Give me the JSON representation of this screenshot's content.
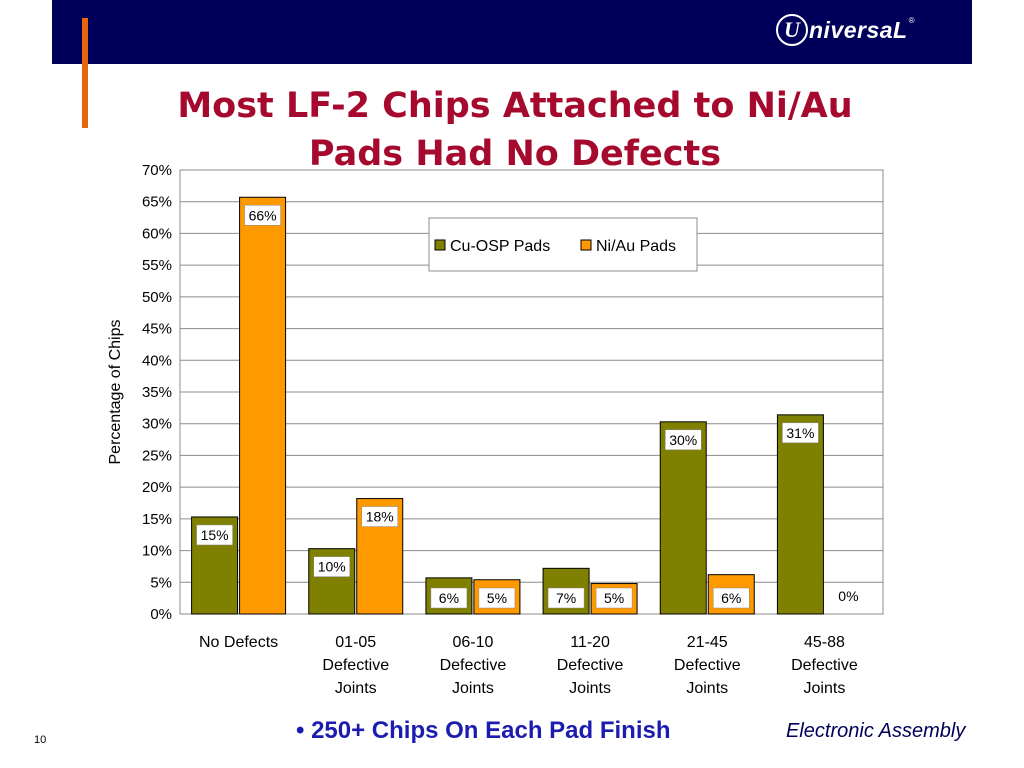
{
  "header": {
    "logo_text": "UniversaL",
    "logo_mark": "®",
    "title_line1": "Most LF-2 Chips Attached to Ni/Au",
    "title_line2": "Pads Had No Defects"
  },
  "footer": {
    "bullet": "• 250+ Chips On Each Pad Finish",
    "brand": "Electronic Assembly",
    "page_number": "10"
  },
  "colors": {
    "topbar": "#00005a",
    "accent": "#e8660c",
    "title": "#a6092e",
    "series_cu": "#7f7f00",
    "series_ni": "#ff9900"
  },
  "chart_data": {
    "type": "bar",
    "title": "",
    "xlabel": "",
    "ylabel": "Percentage of Chips",
    "ylim": [
      0,
      70
    ],
    "yticks": [
      "0%",
      "5%",
      "10%",
      "15%",
      "20%",
      "25%",
      "30%",
      "35%",
      "40%",
      "45%",
      "50%",
      "55%",
      "60%",
      "65%",
      "70%"
    ],
    "categories": [
      [
        "No Defects"
      ],
      [
        "01-05",
        "Defective",
        "Joints"
      ],
      [
        "06-10",
        "Defective",
        "Joints"
      ],
      [
        "11-20",
        "Defective",
        "Joints"
      ],
      [
        "21-45",
        "Defective",
        "Joints"
      ],
      [
        "45-88",
        "Defective",
        "Joints"
      ]
    ],
    "series": [
      {
        "name": "Cu-OSP Pads",
        "color": "#7f7f00",
        "values": [
          15.3,
          10.3,
          5.7,
          7.2,
          30.3,
          31.4
        ],
        "labels": [
          "15%",
          "10%",
          "6%",
          "7%",
          "30%",
          "31%"
        ]
      },
      {
        "name": "Ni/Au Pads",
        "color": "#ff9900",
        "values": [
          65.7,
          18.2,
          5.4,
          4.8,
          6.2,
          0
        ],
        "labels": [
          "66%",
          "18%",
          "5%",
          "5%",
          "6%",
          "0%"
        ]
      }
    ],
    "grid": true,
    "legend_position": "top-right"
  }
}
